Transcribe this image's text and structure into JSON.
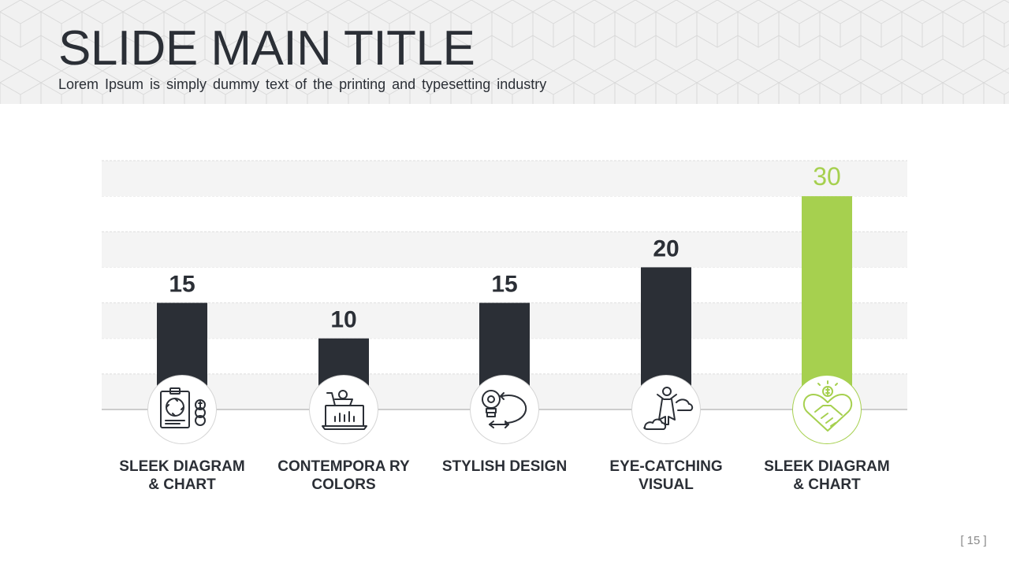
{
  "header": {
    "title": "SLIDE MAIN TITLE",
    "subtitle": "Lorem Ipsum is simply dummy text of the printing and typesetting industry"
  },
  "colors": {
    "bar": "#2b2f36",
    "highlight": "#a6d04f",
    "band": "#f4f4f4",
    "text": "#2b2f36"
  },
  "chart_data": {
    "type": "bar",
    "categories": [
      "SLEEK DIAGRAM & CHART",
      "CONTEMPORA RY COLORS",
      "STYLISH DESIGN",
      "EYE-CATCHING VISUAL",
      "SLEEK DIAGRAM & CHART"
    ],
    "values": [
      15,
      10,
      15,
      20,
      30
    ],
    "data_labels": [
      "15",
      "10",
      "15",
      "20",
      "30"
    ],
    "highlight_index": 4,
    "ylim": [
      0,
      35
    ],
    "grid": true,
    "axis_ticks_shown": false,
    "icons": [
      "clipboard-cycle-coins-icon",
      "shopping-cart-laptop-icon",
      "lightbulb-target-arrow-icon",
      "superhero-cloud-icon",
      "handshake-heart-dollar-icon"
    ]
  },
  "footer": {
    "page_number": "[ 15 ]"
  }
}
